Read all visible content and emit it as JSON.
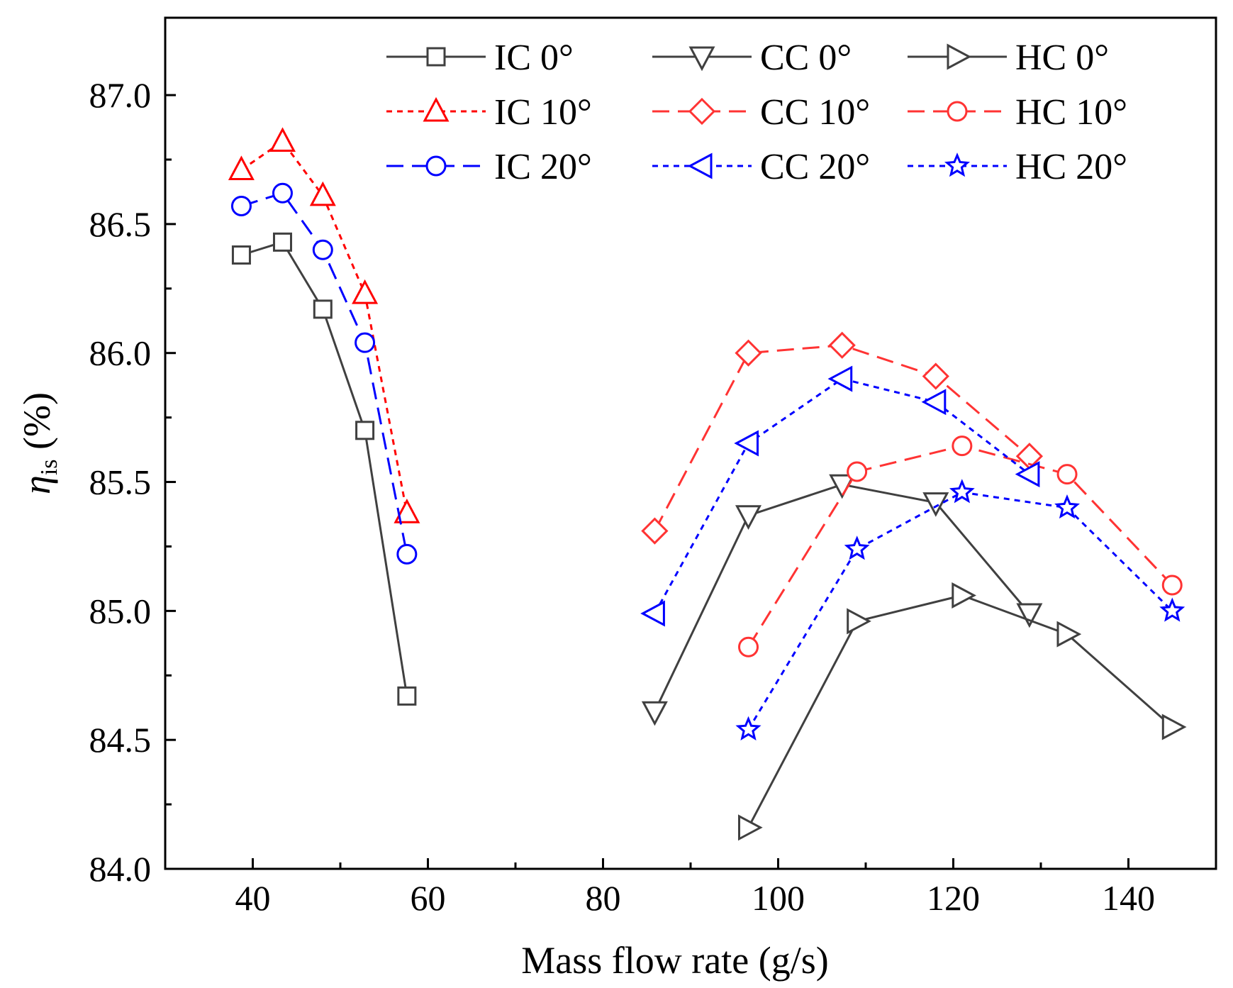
{
  "chart_data": {
    "type": "line",
    "title": "",
    "xlabel": "Mass flow rate (g/s)",
    "ylabel_symbol": "η",
    "ylabel_subscript": "is",
    "ylabel_unit": " (%)",
    "xlim": [
      30,
      150
    ],
    "ylim": [
      84.0,
      87.3
    ],
    "x_ticks": [
      40,
      60,
      80,
      100,
      120,
      140
    ],
    "x_tick_labels": [
      "40",
      "60",
      "80",
      "100",
      "120",
      "140"
    ],
    "y_ticks": [
      84.0,
      84.5,
      85.0,
      85.5,
      86.0,
      86.5,
      87.0
    ],
    "y_tick_labels": [
      "84.0",
      "84.5",
      "85.0",
      "85.5",
      "86.0",
      "86.5",
      "87.0"
    ],
    "legend_position": "top-right",
    "series": [
      {
        "name": "IC 0°",
        "color": "#404040",
        "line": "solid",
        "marker": "square",
        "x": [
          38.7,
          43.4,
          48.0,
          52.8,
          57.6
        ],
        "y": [
          86.38,
          86.43,
          86.17,
          85.7,
          84.67
        ]
      },
      {
        "name": "CC 0°",
        "color": "#404040",
        "line": "solid",
        "marker": "triangle-down",
        "x": [
          85.9,
          96.6,
          107.3,
          118.0,
          128.7
        ],
        "y": [
          84.61,
          85.37,
          85.49,
          85.42,
          84.99
        ]
      },
      {
        "name": "HC 0°",
        "color": "#404040",
        "line": "solid",
        "marker": "triangle-right",
        "x": [
          96.6,
          109.0,
          121.0,
          133.0,
          145.0
        ],
        "y": [
          84.16,
          84.96,
          85.06,
          84.91,
          84.55
        ]
      },
      {
        "name": "IC 10°",
        "color": "#ff0000",
        "line": "dotted",
        "marker": "triangle-up",
        "x": [
          38.7,
          43.4,
          48.0,
          52.8,
          57.6
        ],
        "y": [
          86.71,
          86.82,
          86.61,
          86.23,
          85.38
        ]
      },
      {
        "name": "CC 10°",
        "color": "#ff3333",
        "line": "dashed",
        "marker": "diamond",
        "x": [
          85.9,
          96.6,
          107.3,
          118.0,
          128.7
        ],
        "y": [
          85.31,
          86.0,
          86.03,
          85.91,
          85.6
        ]
      },
      {
        "name": "HC 10°",
        "color": "#ff3333",
        "line": "dashed",
        "marker": "circle",
        "x": [
          96.6,
          109.0,
          121.0,
          133.0,
          145.0
        ],
        "y": [
          84.86,
          85.54,
          85.64,
          85.53,
          85.1
        ]
      },
      {
        "name": "IC 20°",
        "color": "#0000ff",
        "line": "dashed",
        "marker": "circle",
        "x": [
          38.7,
          43.4,
          48.0,
          52.8,
          57.6
        ],
        "y": [
          86.57,
          86.62,
          86.4,
          86.04,
          85.22
        ]
      },
      {
        "name": "CC 20°",
        "color": "#0000ff",
        "line": "dotted",
        "marker": "triangle-left",
        "x": [
          85.9,
          96.6,
          107.3,
          118.0,
          128.7
        ],
        "y": [
          84.99,
          85.65,
          85.9,
          85.81,
          85.53
        ]
      },
      {
        "name": "HC 20°",
        "color": "#0000ff",
        "line": "dotted",
        "marker": "star",
        "x": [
          96.6,
          109.0,
          121.0,
          133.0,
          145.0
        ],
        "y": [
          84.54,
          85.24,
          85.46,
          85.4,
          85.0
        ]
      }
    ]
  }
}
